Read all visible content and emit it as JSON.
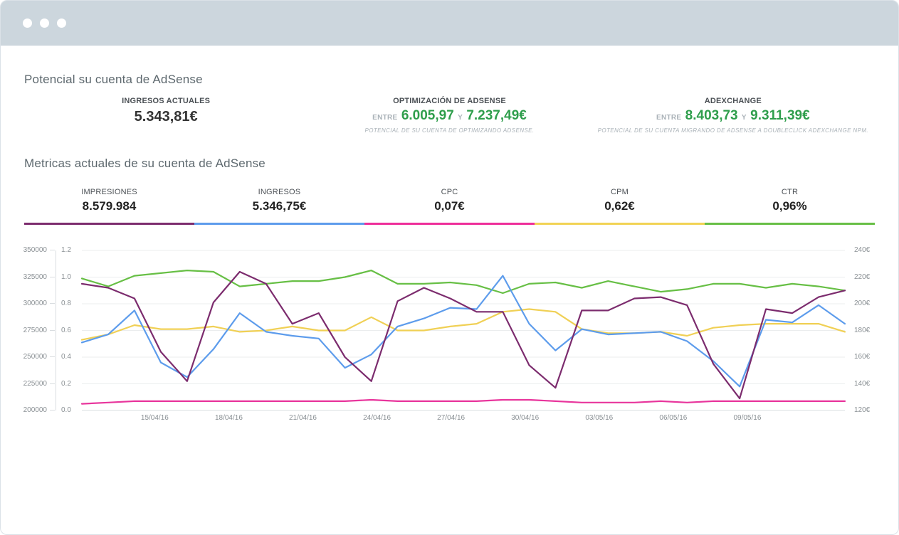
{
  "potential": {
    "heading": "Potencial su cuenta de AdSense",
    "stats": [
      {
        "label": "INGRESOS ACTUALES",
        "value": "5.343,81€"
      },
      {
        "label": "OPTIMIZACIÓN DE ADSENSE",
        "prefix": "ENTRE",
        "low": "6.005,97",
        "conjunction": "Y",
        "high": "7.237,49€",
        "caption": "POTENCIAL DE SU CUENTA DE OPTIMIZANDO ADSENSE.",
        "accent_color": "#2f9e4c"
      },
      {
        "label": "ADEXCHANGE",
        "prefix": "ENTRE",
        "low": "8.403,73",
        "conjunction": "Y",
        "high": "9.311,39€",
        "caption": "POTENCIAL DE SU CUENTA MIGRANDO DE ADSENSE A DOUBLECLICK ADEXCHANGE NPM.",
        "accent_color": "#2f9e4c"
      }
    ]
  },
  "metrics": {
    "heading": "Metricas actuales de su cuenta de AdSense",
    "tabs": [
      {
        "label": "IMPRESIONES",
        "value": "8.579.984",
        "color": "#7c2c6e"
      },
      {
        "label": "INGRESOS",
        "value": "5.346,75€",
        "color": "#5d9cec"
      },
      {
        "label": "CPC",
        "value": "0,07€",
        "color": "#ee2e9a"
      },
      {
        "label": "CPM",
        "value": "0,62€",
        "color": "#f2d355"
      },
      {
        "label": "CTR",
        "value": "0,96%",
        "color": "#67bf45"
      }
    ]
  },
  "chart_data": {
    "type": "line",
    "grid": "horizontal",
    "legend": "none",
    "x": [
      "13/04/16",
      "14/04/16",
      "15/04/16",
      "16/04/16",
      "17/04/16",
      "18/04/16",
      "19/04/16",
      "20/04/16",
      "21/04/16",
      "22/04/16",
      "23/04/16",
      "24/04/16",
      "25/04/16",
      "26/04/16",
      "27/04/16",
      "28/04/16",
      "29/04/16",
      "30/04/16",
      "01/05/16",
      "02/05/16",
      "03/05/16",
      "04/05/16",
      "05/05/16",
      "06/05/16",
      "07/05/16",
      "08/05/16",
      "09/05/16",
      "10/05/16",
      "11/05/16",
      "12/05/16"
    ],
    "x_tick_indices": [
      2,
      5,
      8,
      11,
      14,
      17,
      20,
      23,
      26
    ],
    "axes": {
      "impressions": {
        "side": "left-outer",
        "min": 200000,
        "max": 350000,
        "ticks": [
          "350000",
          "325000",
          "300000",
          "275000",
          "250000",
          "225000",
          "200000"
        ]
      },
      "ratio": {
        "side": "left-inner",
        "min": 0,
        "max": 1.2,
        "ticks": [
          "1.2",
          "1.0",
          "0.8",
          "0.6",
          "0.4",
          "0.2",
          "0.0"
        ]
      },
      "euro": {
        "side": "right",
        "min": 120,
        "max": 240,
        "ticks": [
          "240€",
          "220€",
          "200€",
          "180€",
          "160€",
          "140€",
          "120€"
        ]
      }
    },
    "series": [
      {
        "name": "IMPRESIONES",
        "axis": "impressions",
        "color": "#7c2c6e",
        "values": [
          318750,
          315000,
          305000,
          255000,
          227500,
          301250,
          330000,
          318750,
          281250,
          291250,
          250000,
          227500,
          302500,
          315000,
          305000,
          292500,
          292500,
          242500,
          221250,
          293750,
          293750,
          305000,
          306250,
          298750,
          243750,
          211250,
          295000,
          291250,
          306250,
          312500
        ]
      },
      {
        "name": "INGRESOS",
        "axis": "euro",
        "color": "#5d9cec",
        "values": [
          171,
          177,
          195,
          156,
          145,
          166,
          193,
          179,
          176,
          174,
          152,
          162,
          183,
          189,
          197,
          196,
          221,
          185,
          165,
          181,
          177,
          178,
          179,
          172,
          157,
          138,
          188,
          186,
          199,
          185
        ]
      },
      {
        "name": "CPC",
        "axis": "ratio",
        "color": "#e8359c",
        "values": [
          0.05,
          0.06,
          0.07,
          0.07,
          0.07,
          0.07,
          0.07,
          0.07,
          0.07,
          0.07,
          0.07,
          0.08,
          0.07,
          0.07,
          0.07,
          0.07,
          0.08,
          0.08,
          0.07,
          0.06,
          0.06,
          0.06,
          0.07,
          0.06,
          0.07,
          0.07,
          0.07,
          0.07,
          0.07,
          0.07
        ]
      },
      {
        "name": "CPM",
        "axis": "ratio",
        "color": "#f0d055",
        "values": [
          0.53,
          0.57,
          0.64,
          0.61,
          0.61,
          0.63,
          0.59,
          0.6,
          0.63,
          0.6,
          0.6,
          0.7,
          0.6,
          0.6,
          0.63,
          0.65,
          0.74,
          0.76,
          0.74,
          0.61,
          0.58,
          0.58,
          0.59,
          0.56,
          0.62,
          0.64,
          0.65,
          0.65,
          0.65,
          0.59
        ]
      },
      {
        "name": "CTR",
        "axis": "ratio",
        "color": "#67bf45",
        "values": [
          0.99,
          0.93,
          1.01,
          1.03,
          1.05,
          1.04,
          0.93,
          0.95,
          0.97,
          0.97,
          1.0,
          1.05,
          0.95,
          0.95,
          0.96,
          0.94,
          0.88,
          0.95,
          0.96,
          0.92,
          0.97,
          0.93,
          0.89,
          0.91,
          0.95,
          0.95,
          0.92,
          0.95,
          0.93,
          0.9
        ]
      }
    ]
  }
}
